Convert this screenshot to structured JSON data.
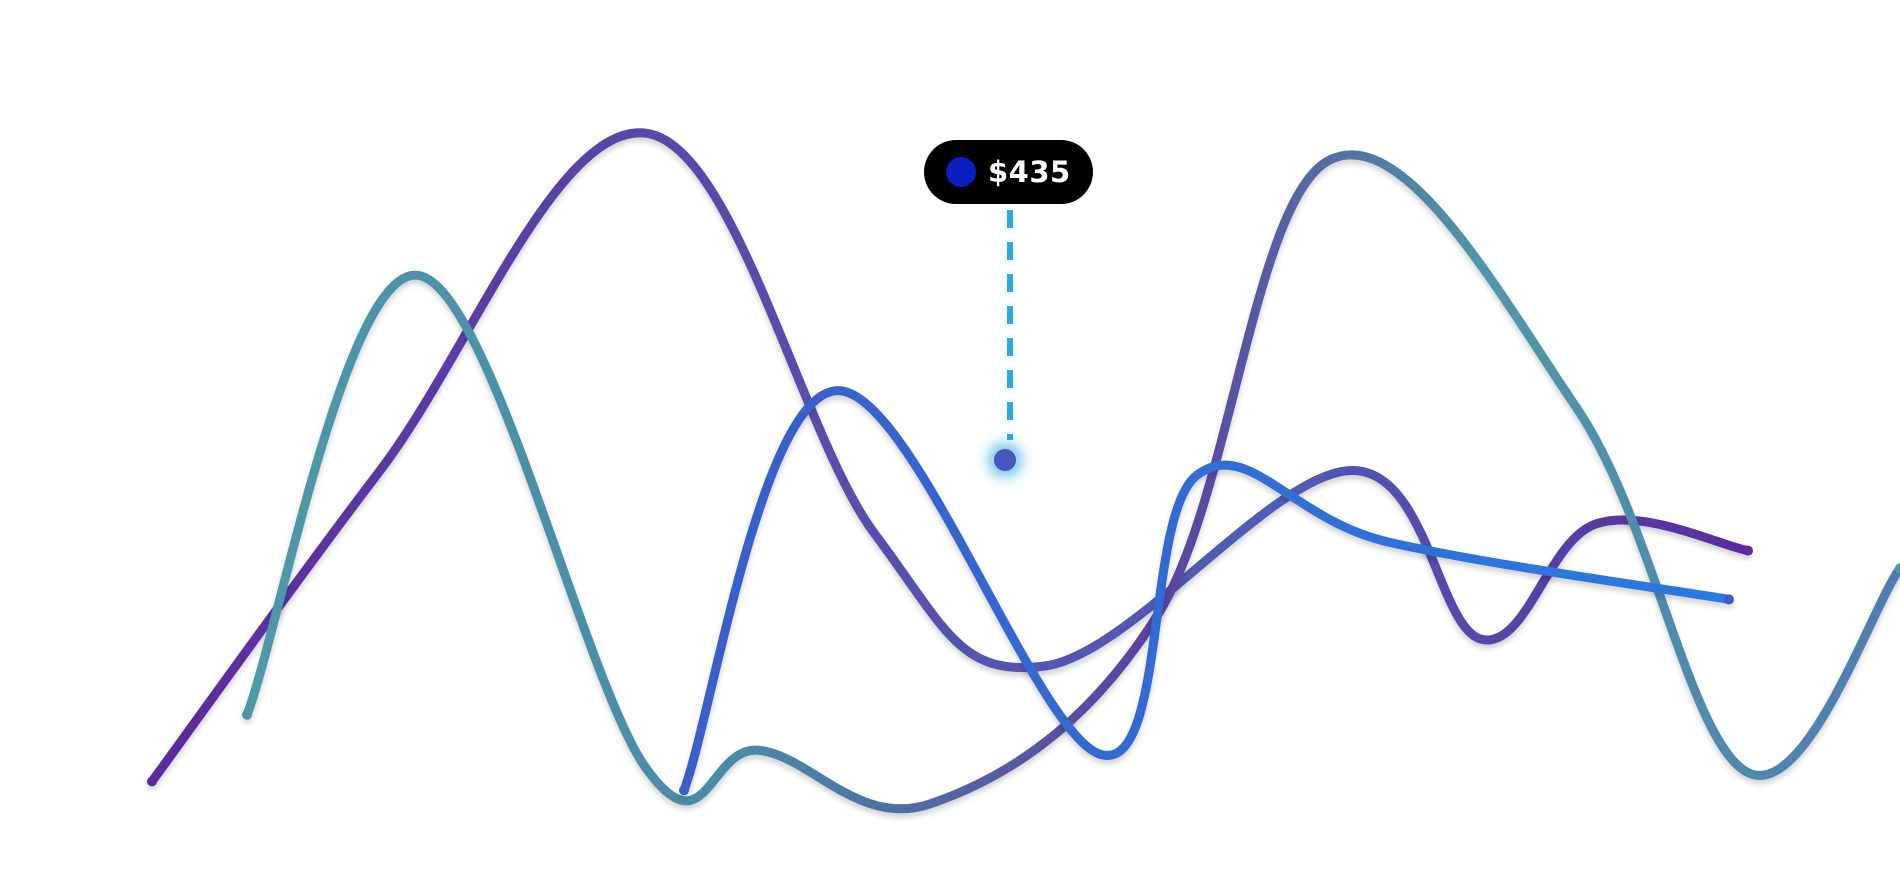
{
  "chart_data": {
    "type": "line",
    "title": "",
    "xlabel": "",
    "ylabel": "",
    "grid": false,
    "legend": "none",
    "ylim": [
      0,
      1000
    ],
    "series": [
      {
        "color_start": "#5b2a9e",
        "color_end": "#5b2a9e",
        "smooth": true,
        "points": [
          [
            0.08,
            120
          ],
          [
            0.2,
            470
          ],
          [
            0.34,
            850
          ],
          [
            0.46,
            400
          ],
          [
            0.55,
            250
          ],
          [
            0.71,
            470
          ],
          [
            0.78,
            280
          ],
          [
            0.84,
            410
          ],
          [
            0.92,
            380
          ]
        ]
      },
      {
        "color_start": "#4f98a8",
        "color_end": "#5b2a9e",
        "smooth": true,
        "points": [
          [
            0.13,
            195
          ],
          [
            0.22,
            690
          ],
          [
            0.34,
            135
          ],
          [
            0.4,
            155
          ],
          [
            0.49,
            95
          ],
          [
            0.61,
            310
          ],
          [
            0.7,
            820
          ],
          [
            0.83,
            540
          ],
          [
            0.92,
            130
          ],
          [
            1.0,
            360
          ]
        ]
      },
      {
        "color_start": "#3a5ec8",
        "color_end": "#2a7ae0",
        "smooth": true,
        "points": [
          [
            0.36,
            110
          ],
          [
            0.44,
            560
          ],
          [
            0.58,
            150
          ],
          [
            0.63,
            465
          ],
          [
            0.73,
            390
          ],
          [
            0.91,
            325
          ]
        ]
      }
    ],
    "tooltip": {
      "label": "$435",
      "dot_color": "#0a1fbf",
      "guide_color": "#29a9e0"
    }
  }
}
